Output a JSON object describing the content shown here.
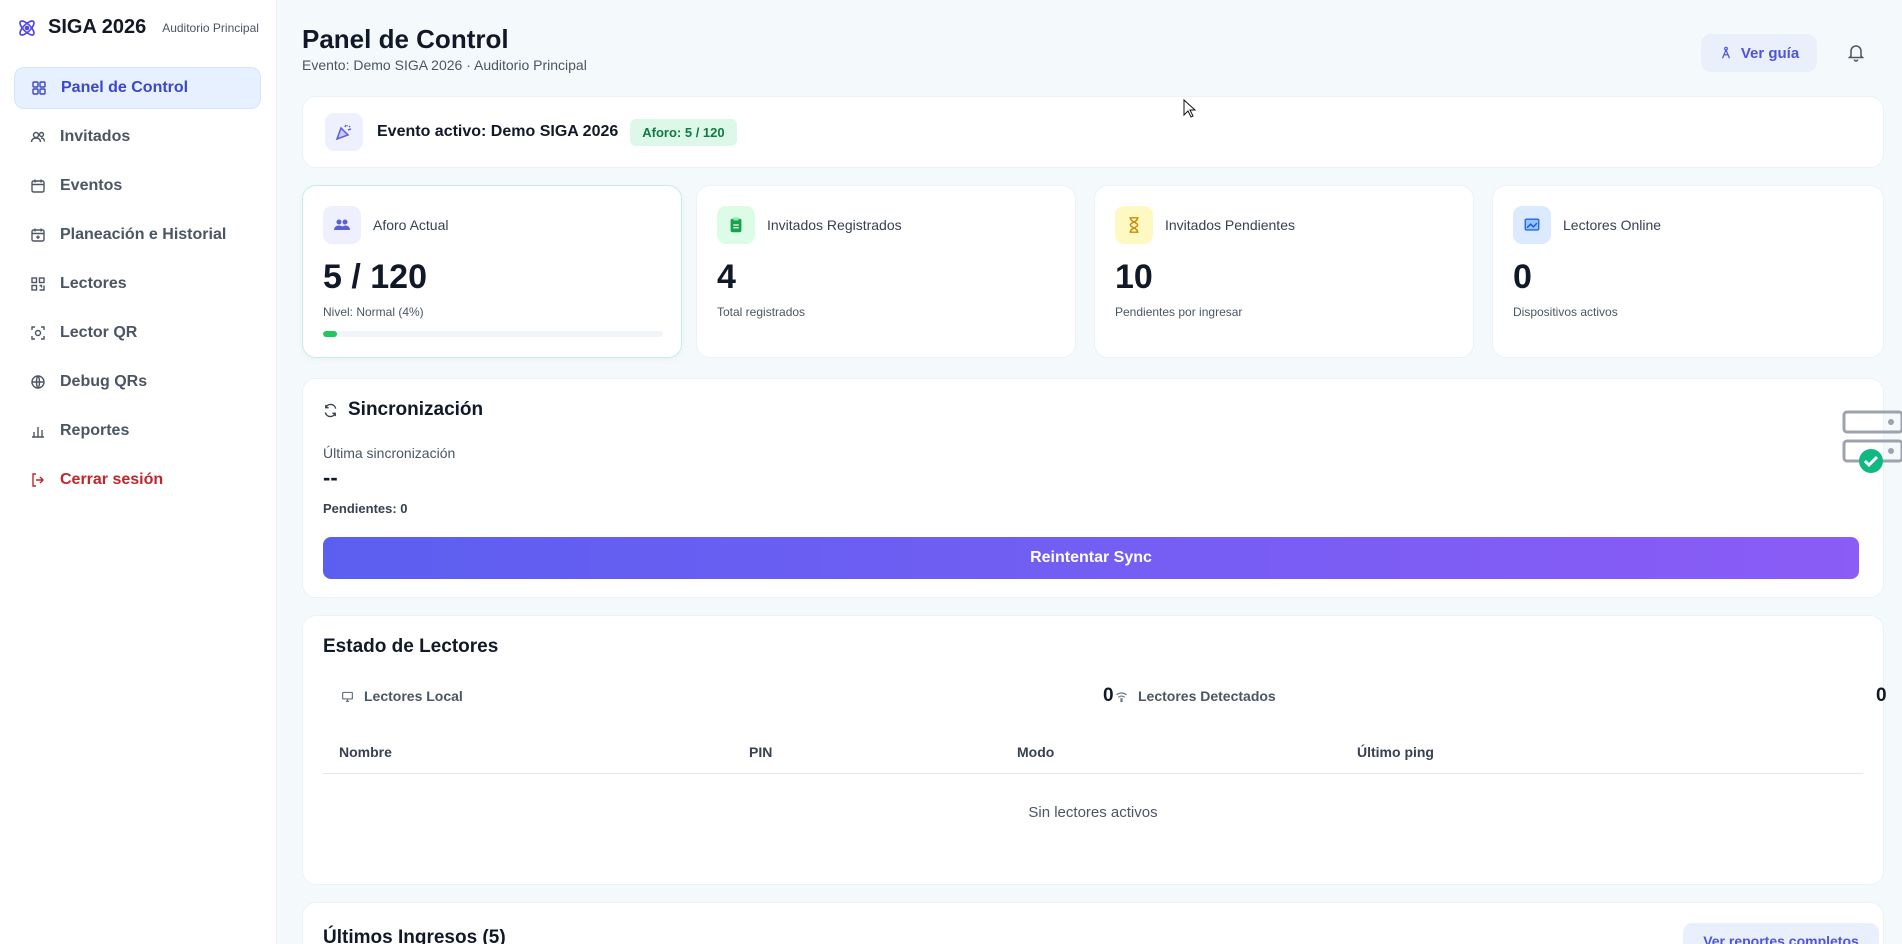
{
  "brand": {
    "name": "SIGA 2026",
    "subtitle": "Auditorio Principal"
  },
  "sidebar": {
    "items": [
      {
        "label": "Panel de Control",
        "icon": "grid-icon",
        "active": true
      },
      {
        "label": "Invitados",
        "icon": "users-icon"
      },
      {
        "label": "Eventos",
        "icon": "calendar-icon"
      },
      {
        "label": "Planeación e Historial",
        "icon": "calendar-plus-icon"
      },
      {
        "label": "Lectores",
        "icon": "qr-grid-icon"
      },
      {
        "label": "Lector QR",
        "icon": "scan-icon"
      },
      {
        "label": "Debug QRs",
        "icon": "globe-icon"
      },
      {
        "label": "Reportes",
        "icon": "bar-chart-icon"
      },
      {
        "label": "Cerrar sesión",
        "icon": "logout-icon"
      }
    ]
  },
  "header": {
    "title": "Panel de Control",
    "subtitle": "Evento: Demo SIGA 2026 · Auditorio Principal",
    "guide_label": "Ver guía"
  },
  "event_bar": {
    "text": "Evento activo: Demo SIGA 2026",
    "badge": "Aforo: 5 / 120"
  },
  "stats": [
    {
      "label": "Aforo Actual",
      "value": "5 / 120",
      "hint": "Nivel: Normal (4%)",
      "progress": 0.04,
      "icon": "people-icon",
      "color": "#eef0fd"
    },
    {
      "label": "Invitados Registrados",
      "value": "4",
      "hint": "Total registrados",
      "icon": "clipboard-icon",
      "color": "#dcfce7"
    },
    {
      "label": "Invitados Pendientes",
      "value": "10",
      "hint": "Pendientes por ingresar",
      "icon": "hourglass-icon",
      "color": "#fef9c3"
    },
    {
      "label": "Lectores Online",
      "value": "0",
      "hint": "Dispositivos activos",
      "icon": "monitor-icon",
      "color": "#dbeafe"
    }
  ],
  "sync": {
    "title": "Sincronización",
    "last_label": "Última sincronización",
    "last_value": "--",
    "pending": "Pendientes: 0",
    "button": "Reintentar Sync"
  },
  "readers": {
    "title": "Estado de Lectores",
    "local_label": "Lectores Local",
    "local_count": "0",
    "detected_label": "Lectores Detectados",
    "detected_count": "0",
    "columns": [
      "Nombre",
      "PIN",
      "Modo",
      "Último ping"
    ],
    "empty": "Sin lectores activos"
  },
  "ingresos": {
    "title": "Últimos Ingresos (5)",
    "button": "Ver reportes completos"
  }
}
